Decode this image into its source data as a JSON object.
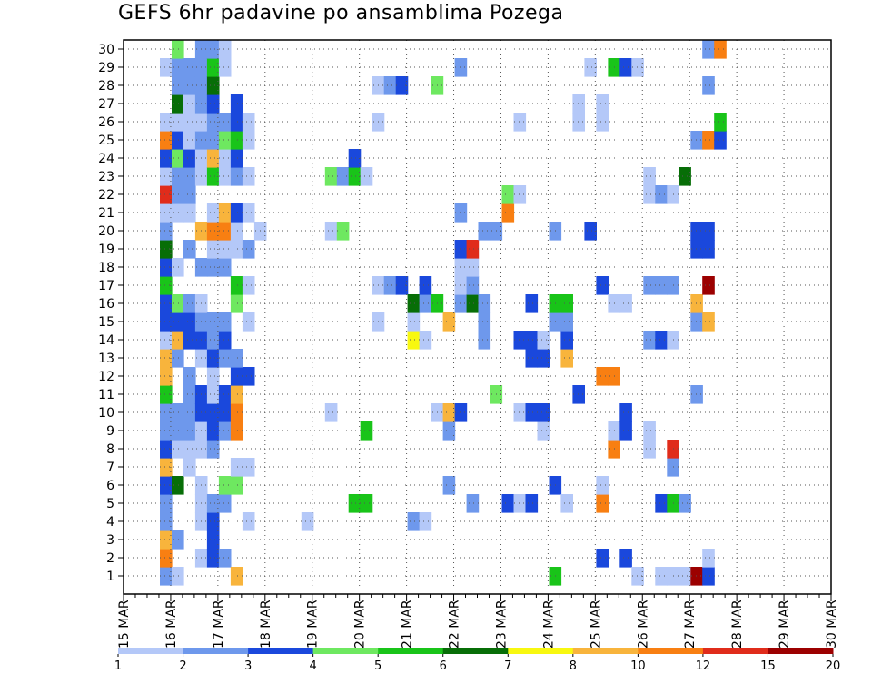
{
  "chart_data": {
    "type": "heatmap",
    "title": "GEFS 6hr padavine po ansamblima Pozega",
    "xlabel": "",
    "ylabel": "",
    "x_ticks": [
      "15 MAR",
      "16 MAR",
      "17 MAR",
      "18 MAR",
      "19 MAR",
      "20 MAR",
      "21 MAR",
      "22 MAR",
      "23 MAR",
      "24 MAR",
      "25 MAR",
      "26 MAR",
      "27 MAR",
      "28 MAR",
      "29 MAR",
      "30 MAR"
    ],
    "y_ticks": [
      "1",
      "2",
      "3",
      "4",
      "5",
      "6",
      "7",
      "8",
      "9",
      "10",
      "11",
      "12",
      "13",
      "14",
      "15",
      "16",
      "17",
      "18",
      "19",
      "20",
      "21",
      "22",
      "23",
      "24",
      "25",
      "26",
      "27",
      "28",
      "29",
      "30"
    ],
    "grid": true,
    "colorbar": {
      "labels": [
        "1",
        "2",
        "3",
        "4",
        "5",
        "6",
        "7",
        "8",
        "10",
        "12",
        "15",
        "20"
      ],
      "colors": [
        "#b4c8f8",
        "#6e98ec",
        "#1a48dc",
        "#6ee860",
        "#19c419",
        "#076e07",
        "#f8f810",
        "#f8b43c",
        "#f87f12",
        "#e02c1b",
        "#9c0000"
      ]
    },
    "cells": [
      [
        0,
        0,
        1
      ],
      [
        0,
        1,
        8
      ],
      [
        0,
        2,
        7
      ],
      [
        0,
        3,
        1
      ],
      [
        0,
        4,
        1
      ],
      [
        0,
        5,
        2
      ],
      [
        0,
        6,
        7
      ],
      [
        0,
        7,
        2
      ],
      [
        0,
        8,
        1
      ],
      [
        0,
        9,
        1
      ],
      [
        0,
        10,
        4
      ],
      [
        0,
        11,
        7
      ],
      [
        0,
        12,
        7
      ],
      [
        0,
        13,
        0
      ],
      [
        0,
        14,
        2
      ],
      [
        0,
        15,
        2
      ],
      [
        0,
        16,
        4
      ],
      [
        0,
        17,
        2
      ],
      [
        0,
        18,
        5
      ],
      [
        0,
        19,
        1
      ],
      [
        0,
        20,
        0
      ],
      [
        0,
        21,
        9
      ],
      [
        0,
        22,
        0
      ],
      [
        0,
        23,
        2
      ],
      [
        0,
        24,
        8
      ],
      [
        0,
        25,
        0
      ],
      [
        0,
        28,
        0
      ],
      [
        1,
        0,
        0
      ],
      [
        1,
        2,
        1
      ],
      [
        1,
        5,
        5
      ],
      [
        1,
        7,
        0
      ],
      [
        1,
        8,
        1
      ],
      [
        1,
        9,
        1
      ],
      [
        1,
        12,
        1
      ],
      [
        1,
        13,
        7
      ],
      [
        1,
        14,
        2
      ],
      [
        1,
        15,
        3
      ],
      [
        1,
        17,
        0
      ],
      [
        1,
        20,
        0
      ],
      [
        1,
        21,
        1
      ],
      [
        1,
        22,
        1
      ],
      [
        1,
        23,
        3
      ],
      [
        1,
        24,
        2
      ],
      [
        1,
        25,
        0
      ],
      [
        1,
        26,
        5
      ],
      [
        1,
        27,
        1
      ],
      [
        1,
        28,
        1
      ],
      [
        1,
        29,
        3
      ],
      [
        2,
        6,
        0
      ],
      [
        2,
        7,
        0
      ],
      [
        2,
        8,
        1
      ],
      [
        2,
        9,
        1
      ],
      [
        2,
        10,
        1
      ],
      [
        2,
        11,
        1
      ],
      [
        2,
        13,
        2
      ],
      [
        2,
        14,
        2
      ],
      [
        2,
        15,
        1
      ],
      [
        2,
        18,
        1
      ],
      [
        2,
        20,
        0
      ],
      [
        2,
        21,
        1
      ],
      [
        2,
        22,
        1
      ],
      [
        2,
        23,
        2
      ],
      [
        2,
        24,
        0
      ],
      [
        2,
        25,
        0
      ],
      [
        2,
        26,
        0
      ],
      [
        2,
        27,
        1
      ],
      [
        2,
        28,
        1
      ],
      [
        3,
        1,
        0
      ],
      [
        3,
        3,
        0
      ],
      [
        3,
        4,
        0
      ],
      [
        3,
        5,
        0
      ],
      [
        3,
        7,
        0
      ],
      [
        3,
        8,
        0
      ],
      [
        3,
        9,
        2
      ],
      [
        3,
        10,
        2
      ],
      [
        3,
        12,
        0
      ],
      [
        3,
        13,
        2
      ],
      [
        3,
        14,
        1
      ],
      [
        3,
        15,
        0
      ],
      [
        3,
        17,
        1
      ],
      [
        3,
        19,
        7
      ],
      [
        3,
        22,
        0
      ],
      [
        3,
        23,
        0
      ],
      [
        3,
        24,
        1
      ],
      [
        3,
        25,
        0
      ],
      [
        3,
        26,
        1
      ],
      [
        3,
        27,
        1
      ],
      [
        3,
        28,
        1
      ],
      [
        3,
        29,
        1
      ],
      [
        4,
        1,
        2
      ],
      [
        4,
        2,
        2
      ],
      [
        4,
        3,
        2
      ],
      [
        4,
        4,
        1
      ],
      [
        4,
        7,
        1
      ],
      [
        4,
        8,
        2
      ],
      [
        4,
        9,
        2
      ],
      [
        4,
        10,
        0
      ],
      [
        4,
        11,
        0
      ],
      [
        4,
        12,
        2
      ],
      [
        4,
        13,
        1
      ],
      [
        4,
        14,
        1
      ],
      [
        4,
        17,
        1
      ],
      [
        4,
        18,
        0
      ],
      [
        4,
        19,
        8
      ],
      [
        4,
        20,
        0
      ],
      [
        4,
        22,
        4
      ],
      [
        4,
        23,
        7
      ],
      [
        4,
        24,
        1
      ],
      [
        4,
        25,
        1
      ],
      [
        4,
        26,
        2
      ],
      [
        4,
        27,
        5
      ],
      [
        4,
        28,
        4
      ],
      [
        4,
        29,
        1
      ],
      [
        5,
        1,
        1
      ],
      [
        5,
        4,
        1
      ],
      [
        5,
        5,
        3
      ],
      [
        5,
        8,
        1
      ],
      [
        5,
        9,
        2
      ],
      [
        5,
        10,
        2
      ],
      [
        5,
        12,
        1
      ],
      [
        5,
        13,
        2
      ],
      [
        5,
        14,
        1
      ],
      [
        5,
        17,
        1
      ],
      [
        5,
        18,
        0
      ],
      [
        5,
        19,
        8
      ],
      [
        5,
        20,
        7
      ],
      [
        5,
        22,
        0
      ],
      [
        5,
        23,
        0
      ],
      [
        5,
        24,
        3
      ],
      [
        5,
        25,
        1
      ],
      [
        5,
        28,
        0
      ],
      [
        5,
        29,
        0
      ],
      [
        6,
        0,
        7
      ],
      [
        6,
        5,
        3
      ],
      [
        6,
        6,
        0
      ],
      [
        6,
        8,
        8
      ],
      [
        6,
        9,
        8
      ],
      [
        6,
        10,
        7
      ],
      [
        6,
        11,
        2
      ],
      [
        6,
        12,
        1
      ],
      [
        6,
        15,
        3
      ],
      [
        6,
        16,
        4
      ],
      [
        6,
        18,
        0
      ],
      [
        6,
        19,
        0
      ],
      [
        6,
        20,
        2
      ],
      [
        6,
        22,
        1
      ],
      [
        6,
        23,
        2
      ],
      [
        6,
        24,
        4
      ],
      [
        6,
        25,
        2
      ],
      [
        6,
        26,
        2
      ],
      [
        7,
        3,
        0
      ],
      [
        7,
        6,
        0
      ],
      [
        7,
        11,
        2
      ],
      [
        7,
        14,
        0
      ],
      [
        7,
        16,
        0
      ],
      [
        7,
        18,
        1
      ],
      [
        7,
        20,
        0
      ],
      [
        7,
        22,
        0
      ],
      [
        7,
        24,
        0
      ],
      [
        7,
        25,
        0
      ],
      [
        8,
        19,
        0
      ],
      [
        12,
        3,
        0
      ],
      [
        14,
        9,
        0
      ],
      [
        14,
        19,
        0
      ],
      [
        14,
        22,
        3
      ],
      [
        15,
        19,
        3
      ],
      [
        15,
        22,
        1
      ],
      [
        16,
        4,
        4
      ],
      [
        16,
        22,
        4
      ],
      [
        16,
        23,
        2
      ],
      [
        17,
        4,
        4
      ],
      [
        17,
        8,
        4
      ],
      [
        17,
        22,
        0
      ],
      [
        18,
        14,
        0
      ],
      [
        18,
        16,
        0
      ],
      [
        18,
        25,
        0
      ],
      [
        18,
        27,
        0
      ],
      [
        19,
        16,
        1
      ],
      [
        19,
        27,
        1
      ],
      [
        20,
        16,
        2
      ],
      [
        20,
        27,
        2
      ],
      [
        21,
        3,
        1
      ],
      [
        21,
        13,
        6
      ],
      [
        21,
        14,
        0
      ],
      [
        21,
        15,
        5
      ],
      [
        22,
        3,
        0
      ],
      [
        22,
        13,
        0
      ],
      [
        22,
        15,
        1
      ],
      [
        22,
        16,
        2
      ],
      [
        23,
        9,
        0
      ],
      [
        23,
        15,
        4
      ],
      [
        23,
        27,
        3
      ],
      [
        24,
        5,
        1
      ],
      [
        24,
        8,
        1
      ],
      [
        24,
        9,
        7
      ],
      [
        24,
        14,
        7
      ],
      [
        25,
        9,
        2
      ],
      [
        25,
        15,
        1
      ],
      [
        25,
        16,
        0
      ],
      [
        25,
        17,
        0
      ],
      [
        25,
        18,
        2
      ],
      [
        25,
        20,
        1
      ],
      [
        25,
        28,
        1
      ],
      [
        26,
        4,
        1
      ],
      [
        26,
        15,
        5
      ],
      [
        26,
        16,
        1
      ],
      [
        26,
        17,
        0
      ],
      [
        26,
        18,
        9
      ],
      [
        27,
        13,
        1
      ],
      [
        27,
        14,
        1
      ],
      [
        27,
        15,
        1
      ],
      [
        27,
        19,
        1
      ],
      [
        28,
        10,
        3
      ],
      [
        28,
        19,
        1
      ],
      [
        29,
        4,
        2
      ],
      [
        29,
        20,
        8
      ],
      [
        29,
        21,
        3
      ],
      [
        30,
        4,
        0
      ],
      [
        30,
        9,
        0
      ],
      [
        30,
        13,
        2
      ],
      [
        30,
        21,
        0
      ],
      [
        30,
        25,
        0
      ],
      [
        31,
        4,
        2
      ],
      [
        31,
        9,
        2
      ],
      [
        31,
        12,
        2
      ],
      [
        31,
        13,
        2
      ],
      [
        31,
        15,
        2
      ],
      [
        32,
        8,
        0
      ],
      [
        32,
        9,
        2
      ],
      [
        32,
        12,
        2
      ],
      [
        32,
        13,
        0
      ],
      [
        33,
        0,
        4
      ],
      [
        33,
        5,
        2
      ],
      [
        33,
        14,
        1
      ],
      [
        33,
        15,
        4
      ],
      [
        33,
        19,
        1
      ],
      [
        34,
        4,
        0
      ],
      [
        34,
        12,
        7
      ],
      [
        34,
        13,
        2
      ],
      [
        34,
        14,
        1
      ],
      [
        34,
        15,
        4
      ],
      [
        35,
        10,
        2
      ],
      [
        35,
        25,
        0
      ],
      [
        35,
        26,
        0
      ],
      [
        36,
        19,
        2
      ],
      [
        36,
        28,
        0
      ],
      [
        37,
        1,
        2
      ],
      [
        37,
        4,
        8
      ],
      [
        37,
        5,
        0
      ],
      [
        37,
        11,
        8
      ],
      [
        37,
        16,
        2
      ],
      [
        37,
        25,
        0
      ],
      [
        37,
        26,
        0
      ],
      [
        38,
        7,
        8
      ],
      [
        38,
        8,
        0
      ],
      [
        38,
        11,
        8
      ],
      [
        38,
        15,
        0
      ],
      [
        38,
        28,
        4
      ],
      [
        39,
        1,
        2
      ],
      [
        39,
        8,
        2
      ],
      [
        39,
        9,
        2
      ],
      [
        39,
        15,
        0
      ],
      [
        39,
        28,
        2
      ],
      [
        40,
        0,
        0
      ],
      [
        40,
        28,
        0
      ],
      [
        41,
        7,
        0
      ],
      [
        41,
        8,
        0
      ],
      [
        41,
        13,
        1
      ],
      [
        41,
        16,
        1
      ],
      [
        41,
        21,
        0
      ],
      [
        41,
        22,
        0
      ],
      [
        42,
        0,
        0
      ],
      [
        42,
        4,
        2
      ],
      [
        42,
        13,
        2
      ],
      [
        42,
        16,
        1
      ],
      [
        42,
        21,
        1
      ],
      [
        43,
        0,
        0
      ],
      [
        43,
        4,
        4
      ],
      [
        43,
        6,
        1
      ],
      [
        43,
        7,
        9
      ],
      [
        43,
        13,
        0
      ],
      [
        43,
        16,
        1
      ],
      [
        43,
        21,
        0
      ],
      [
        44,
        0,
        0
      ],
      [
        44,
        4,
        1
      ],
      [
        44,
        22,
        5
      ],
      [
        45,
        0,
        10
      ],
      [
        45,
        10,
        1
      ],
      [
        45,
        14,
        1
      ],
      [
        45,
        15,
        7
      ],
      [
        45,
        18,
        2
      ],
      [
        45,
        19,
        2
      ],
      [
        45,
        24,
        1
      ],
      [
        46,
        0,
        2
      ],
      [
        46,
        1,
        0
      ],
      [
        46,
        14,
        7
      ],
      [
        46,
        16,
        10
      ],
      [
        46,
        18,
        2
      ],
      [
        46,
        19,
        2
      ],
      [
        46,
        24,
        8
      ],
      [
        46,
        27,
        1
      ],
      [
        46,
        29,
        1
      ],
      [
        47,
        24,
        2
      ],
      [
        47,
        25,
        4
      ],
      [
        47,
        29,
        8
      ]
    ]
  }
}
